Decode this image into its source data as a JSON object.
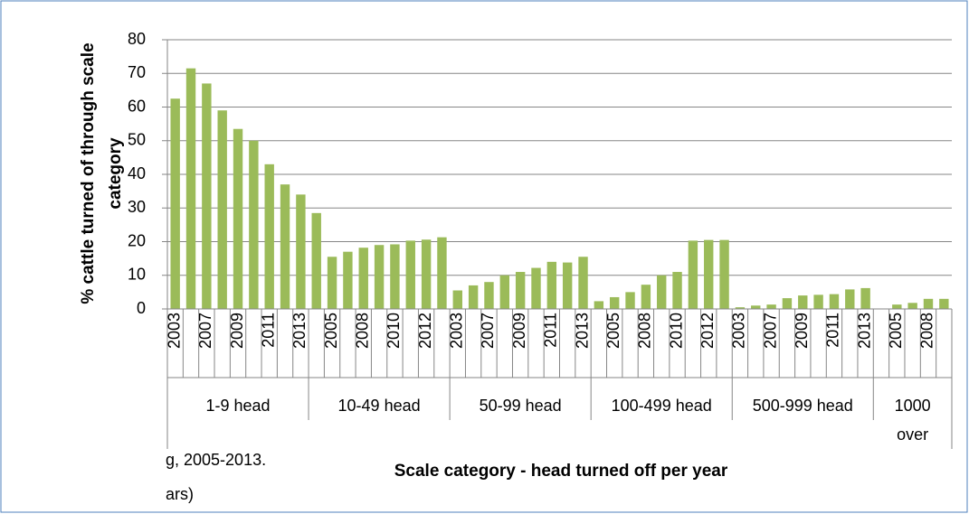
{
  "chart_data": {
    "type": "bar",
    "y_label": [
      "% cattle turned of through scale",
      "category"
    ],
    "x_label": "Scale category - head turned off per year",
    "notes": [
      "g, 2005-2013.",
      "ars)"
    ],
    "color": "#9bbb59",
    "ylim": [
      0,
      80
    ],
    "yticks": [
      0,
      10,
      20,
      30,
      40,
      50,
      60,
      70,
      80
    ],
    "grid": true,
    "groups": [
      {
        "name": "1-9 head",
        "categories": [
          "2003",
          null,
          "2007",
          null,
          "2009",
          null,
          "2011",
          null,
          "2013"
        ],
        "values": [
          62.5,
          71.5,
          67,
          59,
          53.5,
          50,
          43,
          37,
          34
        ]
      },
      {
        "name": "10-49 head",
        "categories": [
          null,
          "2005",
          null,
          "2008",
          null,
          "2010",
          null,
          "2012",
          null
        ],
        "values": [
          28.5,
          15.5,
          17,
          18.2,
          19,
          19.2,
          20.3,
          20.6,
          21.3
        ]
      },
      {
        "name": "50-99 head",
        "categories": [
          "2003",
          null,
          "2007",
          null,
          "2009",
          null,
          "2011",
          null,
          "2013"
        ],
        "values": [
          5.5,
          7,
          8,
          10,
          11,
          12.2,
          14,
          13.8,
          15.5
        ]
      },
      {
        "name": "100-499 head",
        "categories": [
          null,
          "2005",
          null,
          "2008",
          null,
          "2010",
          null,
          "2012",
          null
        ],
        "values": [
          2.3,
          3.5,
          5,
          7.2,
          10,
          11,
          20.3,
          20.5,
          20.5
        ]
      },
      {
        "name": "500-999 head",
        "categories": [
          "2003",
          null,
          "2007",
          null,
          "2009",
          null,
          "2011",
          null,
          "2013"
        ],
        "values": [
          0.5,
          1,
          1.3,
          3.2,
          4,
          4.2,
          4.4,
          5.8,
          6.2
        ]
      },
      {
        "name": "1000 over",
        "categories": [
          null,
          "2005",
          null,
          "2008",
          null
        ],
        "values": [
          null,
          1.3,
          1.8,
          3,
          3
        ]
      }
    ]
  }
}
